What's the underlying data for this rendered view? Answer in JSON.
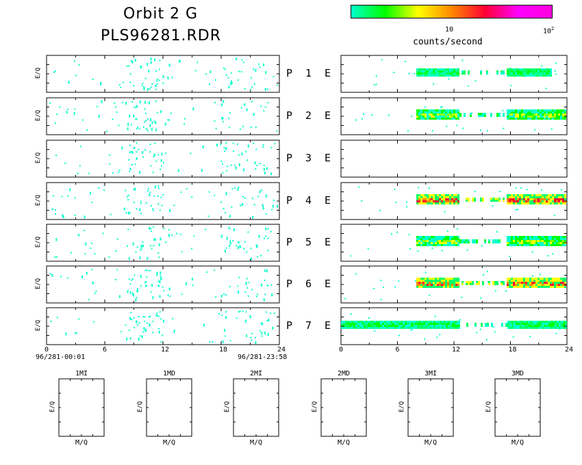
{
  "title_line1": "Orbit 2 G",
  "title_line2": "PLS96281.RDR",
  "colorbar": {
    "label": "counts/second",
    "tick_10": "10",
    "tick_100_base": "10",
    "tick_100_exp": "2",
    "stops": [
      "#00ffcc",
      "#00ff00",
      "#ffff00",
      "#ff8800",
      "#ff0033",
      "#ff00ff",
      "#ff00dd"
    ]
  },
  "ylabel": "E/Q",
  "plabel": "P",
  "elabel": "E",
  "time_start": "96/281-00:01",
  "time_end": "96/281-23:58",
  "chart_data": {
    "type": "heatmap",
    "x_ticks": [
      "0",
      "6",
      "12",
      "18",
      "24"
    ],
    "xlim": [
      0,
      24
    ],
    "rows": [
      {
        "p": "1",
        "left_activity": "sparse",
        "right_bands": [
          {
            "x0": 8,
            "x1": 22.5,
            "level": 1
          }
        ]
      },
      {
        "p": "2",
        "left_activity": "sparse",
        "right_bands": [
          {
            "x0": 8,
            "x1": 24,
            "level": 2
          }
        ]
      },
      {
        "p": "3",
        "left_activity": "sparse",
        "right_bands": []
      },
      {
        "p": "4",
        "left_activity": "sparse",
        "right_bands": [
          {
            "x0": 8,
            "x1": 24,
            "level": 3
          }
        ]
      },
      {
        "p": "5",
        "left_activity": "sparse",
        "right_bands": [
          {
            "x0": 8,
            "x1": 24,
            "level": 2
          }
        ]
      },
      {
        "p": "6",
        "left_activity": "sparse",
        "right_bands": [
          {
            "x0": 8,
            "x1": 24,
            "level": 3
          }
        ]
      },
      {
        "p": "7",
        "left_activity": "sparse",
        "right_bands": [
          {
            "x0": 0,
            "x1": 24,
            "level": 1
          }
        ]
      }
    ]
  },
  "small_panels": [
    {
      "title": "1MI",
      "xlabel": "M/Q",
      "ylabel": "E/Q"
    },
    {
      "title": "1MD",
      "xlabel": "M/Q",
      "ylabel": "E/Q"
    },
    {
      "title": "2MI",
      "xlabel": "M/Q",
      "ylabel": "E/Q"
    },
    {
      "title": "2MD",
      "xlabel": "M/Q",
      "ylabel": "E/Q"
    },
    {
      "title": "3MI",
      "xlabel": "M/Q",
      "ylabel": "E/Q"
    },
    {
      "title": "3MD",
      "xlabel": "M/Q",
      "ylabel": "E/Q"
    }
  ]
}
